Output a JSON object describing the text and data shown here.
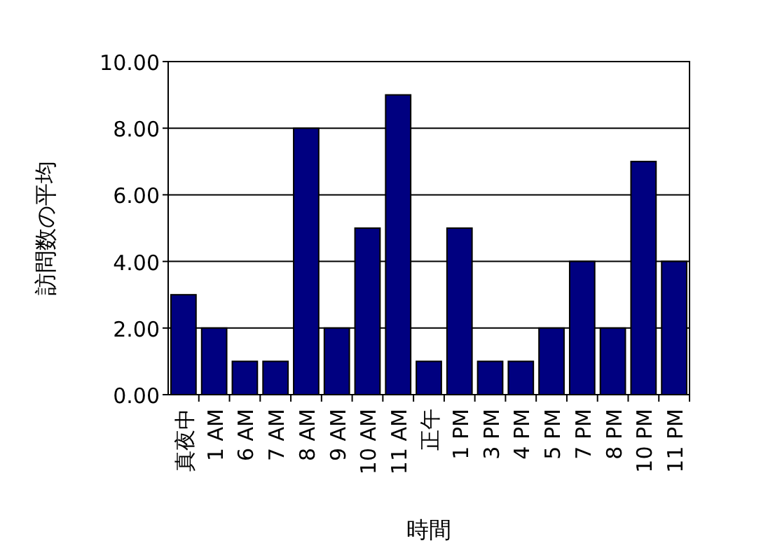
{
  "chart_data": {
    "type": "bar",
    "xlabel": "時間",
    "ylabel": "訪問数の平均",
    "categories": [
      "真夜中",
      "1 AM",
      "6 AM",
      "7 AM",
      "8 AM",
      "9 AM",
      "10 AM",
      "11 AM",
      "正午",
      "1 PM",
      "3 PM",
      "4 PM",
      "5 PM",
      "7 PM",
      "8 PM",
      "10 PM",
      "11 PM"
    ],
    "values": [
      3,
      2,
      1,
      1,
      8,
      2,
      5,
      9,
      1,
      5,
      1,
      1,
      2,
      4,
      2,
      7,
      4
    ],
    "color": "#000080",
    "ylim": [
      0,
      10
    ],
    "yticks": [
      {
        "value": 0,
        "label": "0.00"
      },
      {
        "value": 2,
        "label": "2.00"
      },
      {
        "value": 4,
        "label": "4.00"
      },
      {
        "value": 6,
        "label": "6.00"
      },
      {
        "value": 8,
        "label": "8.00"
      },
      {
        "value": 10,
        "label": "10.00"
      }
    ],
    "grid": "y"
  }
}
